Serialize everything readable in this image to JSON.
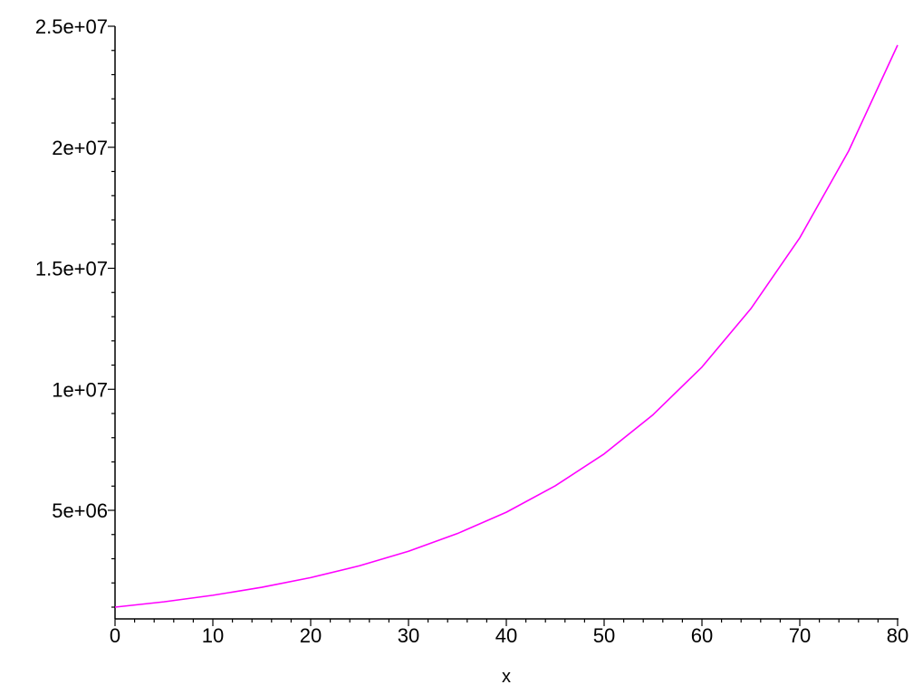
{
  "chart_data": {
    "type": "line",
    "title": "",
    "xlabel": "x",
    "ylabel": "",
    "xlim": [
      0,
      80
    ],
    "ylim": [
      1000000,
      25000000
    ],
    "grid": false,
    "legend": "none",
    "x_ticks": [
      0,
      10,
      20,
      30,
      40,
      50,
      60,
      70,
      80
    ],
    "x_tick_labels": [
      "0",
      "10",
      "20",
      "30",
      "40",
      "50",
      "60",
      "70",
      "80"
    ],
    "y_ticks": [
      5000000,
      10000000,
      15000000,
      20000000,
      25000000
    ],
    "y_tick_labels": [
      "5e+06",
      "1e+07",
      "1.5e+07",
      "2e+07",
      "2.5e+07"
    ],
    "series": [
      {
        "color": "#ff00ff",
        "x": [
          0,
          5,
          10,
          15,
          20,
          25,
          30,
          35,
          40,
          45,
          50,
          55,
          60,
          65,
          70,
          75,
          80
        ],
        "y": [
          1000000,
          1220000,
          1490000,
          1820000,
          2220000,
          2710000,
          3310000,
          4040000,
          4920000,
          6010000,
          7330000,
          8950000,
          10920000,
          13330000,
          16260000,
          19850000,
          24220000
        ]
      }
    ]
  }
}
